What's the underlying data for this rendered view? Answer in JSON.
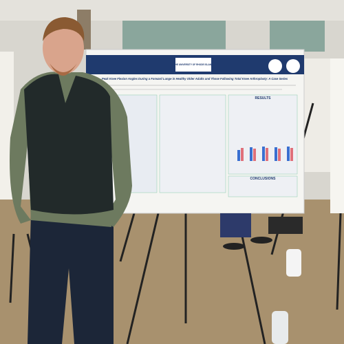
{
  "poster": {
    "logo_text": "THE UNIVERSITY OF RHODE ISLAND",
    "title": "Peak Knee Flexion Angles During a Forward Lunge in Healthy Older Adults and Those Following Total Knee Arthroplasty: A Case Series",
    "sections": [
      "RESULTS",
      "CONCLUSIONS"
    ]
  }
}
